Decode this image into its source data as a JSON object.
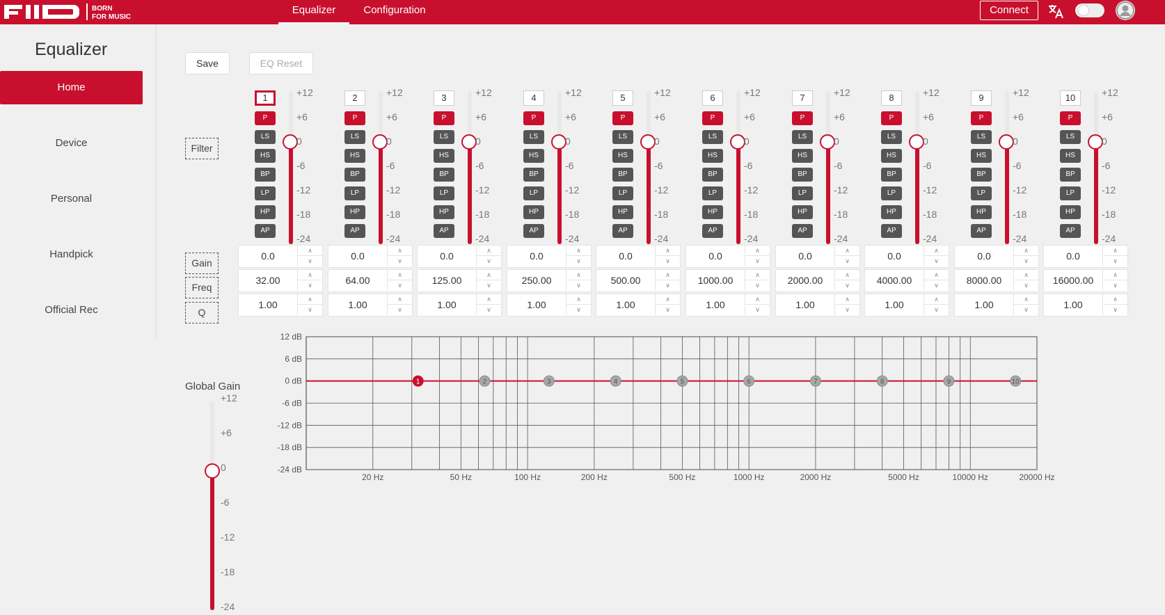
{
  "header": {
    "logo_text": "FIIO",
    "logo_slogan": [
      "BORN",
      "FOR MUSIC"
    ],
    "tabs": [
      "Equalizer",
      "Configuration"
    ],
    "connect_label": "Connect",
    "lang_icon": "translate-icon",
    "avatar_icon": "user-avatar-icon"
  },
  "sidebar": {
    "title": "Equalizer",
    "items": [
      "Home",
      "Device",
      "Personal",
      "Handpick",
      "Official Rec"
    ],
    "active_index": 0
  },
  "toolbar": {
    "save_label": "Save",
    "reset_label": "EQ Reset"
  },
  "row_labels": {
    "filter": "Filter",
    "gain": "Gain",
    "freq": "Freq",
    "q": "Q"
  },
  "filter_types": [
    "P",
    "LS",
    "HS",
    "BP",
    "LP",
    "HP",
    "AP"
  ],
  "slider_ticks": [
    "+12",
    "+6",
    "0",
    "-6",
    "-12",
    "-18",
    "-24"
  ],
  "slider_range": [
    -24,
    12
  ],
  "bands": [
    {
      "num": "1",
      "filter": "P",
      "gain": "0.0",
      "freq": "32.00",
      "q": "1.00",
      "gain_value": 0,
      "selected": true
    },
    {
      "num": "2",
      "filter": "P",
      "gain": "0.0",
      "freq": "64.00",
      "q": "1.00",
      "gain_value": 0
    },
    {
      "num": "3",
      "filter": "P",
      "gain": "0.0",
      "freq": "125.00",
      "q": "1.00",
      "gain_value": 0
    },
    {
      "num": "4",
      "filter": "P",
      "gain": "0.0",
      "freq": "250.00",
      "q": "1.00",
      "gain_value": 0
    },
    {
      "num": "5",
      "filter": "P",
      "gain": "0.0",
      "freq": "500.00",
      "q": "1.00",
      "gain_value": 0
    },
    {
      "num": "6",
      "filter": "P",
      "gain": "0.0",
      "freq": "1000.00",
      "q": "1.00",
      "gain_value": 0
    },
    {
      "num": "7",
      "filter": "P",
      "gain": "0.0",
      "freq": "2000.00",
      "q": "1.00",
      "gain_value": 0
    },
    {
      "num": "8",
      "filter": "P",
      "gain": "0.0",
      "freq": "4000.00",
      "q": "1.00",
      "gain_value": 0
    },
    {
      "num": "9",
      "filter": "P",
      "gain": "0.0",
      "freq": "8000.00",
      "q": "1.00",
      "gain_value": 0
    },
    {
      "num": "10",
      "filter": "P",
      "gain": "0.0",
      "freq": "16000.00",
      "q": "1.00",
      "gain_value": 0
    }
  ],
  "global_gain": {
    "title": "Global Gain",
    "value": 0,
    "ticks": [
      "+12",
      "+6",
      "0",
      "-6",
      "-12",
      "-18",
      "-24"
    ]
  },
  "colors": {
    "accent": "#c8102e",
    "button_dark": "#555555",
    "curve": "#c8102e",
    "point_inactive": "#a8a8a8"
  },
  "chart_data": {
    "type": "line",
    "x_scale": "log",
    "xlim": [
      10,
      20000
    ],
    "ylim": [
      -24,
      12
    ],
    "x_ticks": [
      20,
      50,
      100,
      200,
      500,
      1000,
      2000,
      5000,
      10000,
      20000
    ],
    "x_tick_labels": [
      "20 Hz",
      "50 Hz",
      "100 Hz",
      "200 Hz",
      "500 Hz",
      "1000 Hz",
      "2000 Hz",
      "5000 Hz",
      "10000 Hz",
      "20000 Hz"
    ],
    "y_ticks": [
      12,
      6,
      0,
      -6,
      -12,
      -18,
      -24
    ],
    "y_tick_labels": [
      "12 dB",
      "6 dB",
      "0 dB",
      "-6 dB",
      "-12 dB",
      "-18 dB",
      "-24 dB"
    ],
    "x_minor": [
      30,
      40,
      60,
      70,
      80,
      90,
      300,
      400,
      600,
      700,
      800,
      900,
      3000,
      4000,
      6000,
      7000,
      8000,
      9000
    ],
    "grid": true,
    "series": [
      {
        "values": [
          0,
          0
        ]
      }
    ],
    "points": [
      {
        "label": "1",
        "x": 32,
        "y": 0,
        "active": true
      },
      {
        "label": "2",
        "x": 64,
        "y": 0
      },
      {
        "label": "3",
        "x": 125,
        "y": 0
      },
      {
        "label": "4",
        "x": 250,
        "y": 0
      },
      {
        "label": "5",
        "x": 500,
        "y": 0
      },
      {
        "label": "6",
        "x": 1000,
        "y": 0
      },
      {
        "label": "7",
        "x": 2000,
        "y": 0
      },
      {
        "label": "8",
        "x": 4000,
        "y": 0
      },
      {
        "label": "9",
        "x": 8000,
        "y": 0
      },
      {
        "label": "10",
        "x": 16000,
        "y": 0
      }
    ]
  }
}
